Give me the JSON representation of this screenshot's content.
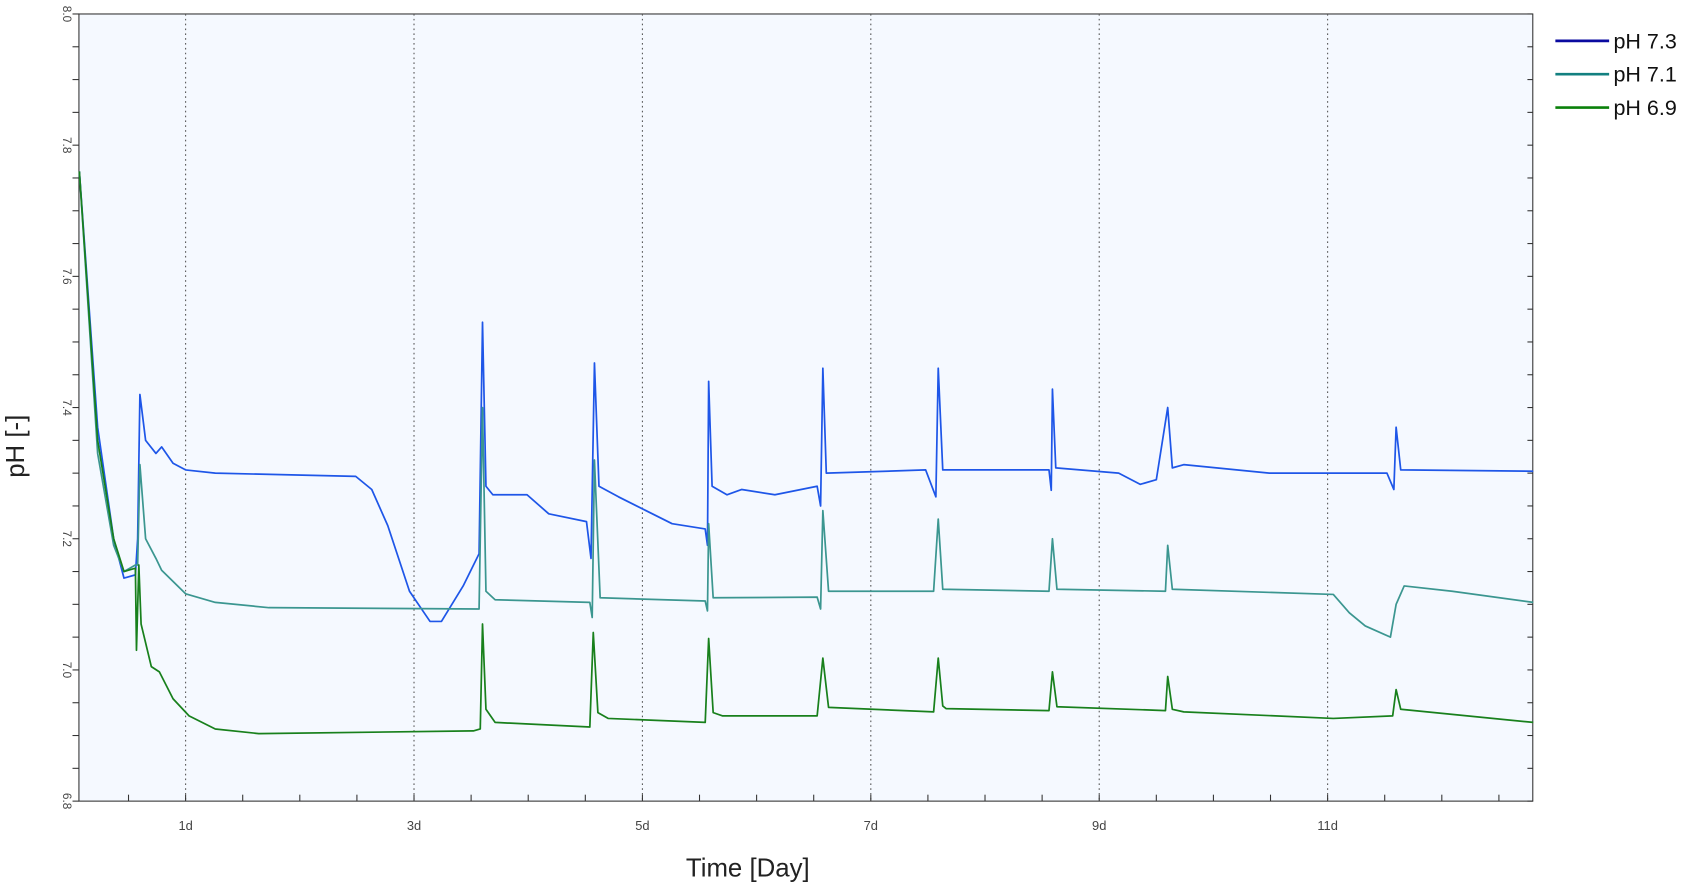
{
  "chart_data": {
    "type": "line",
    "title": "",
    "xlabel": "Time [Day]",
    "ylabel": "pH [-]",
    "xlim": [
      0.07,
      12.8
    ],
    "ylim": [
      6.8,
      8.0
    ],
    "x_ticks": [
      1,
      3,
      5,
      7,
      9,
      11
    ],
    "x_tick_labels": [
      "1d",
      "3d",
      "5d",
      "7d",
      "9d",
      "11d"
    ],
    "y_ticks": [
      6.8,
      7.0,
      7.2,
      7.4,
      7.6,
      7.8,
      8.0
    ],
    "y_tick_labels": [
      "6.8",
      "7.0",
      "7.2",
      "7.4",
      "7.6",
      "7.8",
      "8.0"
    ],
    "grid": "vertical dotted at labelled days",
    "legend_position": "top-right outside",
    "background": "#f5f9ff",
    "series": [
      {
        "name": "pH 7.3",
        "color": "#1e56e8",
        "legend_color": "#0a0aa0",
        "x": [
          0.07,
          0.23,
          0.37,
          0.46,
          0.56,
          0.58,
          0.6,
          0.65,
          0.74,
          0.79,
          0.89,
          1.0,
          1.26,
          2.49,
          2.63,
          2.77,
          2.96,
          3.14,
          3.24,
          3.43,
          3.57,
          3.6,
          3.63,
          3.69,
          3.99,
          4.18,
          4.51,
          4.55,
          4.58,
          4.62,
          4.79,
          5.03,
          5.26,
          5.55,
          5.57,
          5.58,
          5.61,
          5.74,
          5.87,
          6.16,
          6.53,
          6.56,
          6.58,
          6.61,
          7.48,
          7.57,
          7.59,
          7.63,
          8.56,
          8.58,
          8.59,
          8.62,
          9.17,
          9.36,
          9.5,
          9.6,
          9.64,
          9.74,
          10.49,
          11.52,
          11.58,
          11.6,
          11.64,
          12.8
        ],
        "y": [
          7.76,
          7.37,
          7.2,
          7.14,
          7.145,
          7.2,
          7.42,
          7.35,
          7.33,
          7.34,
          7.315,
          7.305,
          7.3,
          7.295,
          7.275,
          7.22,
          7.12,
          7.074,
          7.074,
          7.128,
          7.177,
          7.53,
          7.28,
          7.267,
          7.267,
          7.238,
          7.226,
          7.17,
          7.468,
          7.28,
          7.264,
          7.243,
          7.223,
          7.215,
          7.19,
          7.44,
          7.28,
          7.267,
          7.275,
          7.267,
          7.28,
          7.25,
          7.46,
          7.3,
          7.305,
          7.264,
          7.46,
          7.305,
          7.305,
          7.274,
          7.428,
          7.308,
          7.3,
          7.283,
          7.29,
          7.4,
          7.308,
          7.313,
          7.3,
          7.3,
          7.275,
          7.37,
          7.305,
          7.303
        ]
      },
      {
        "name": "pH 7.1",
        "color": "#3b9690",
        "legend_color": "#138080",
        "x": [
          0.07,
          0.23,
          0.37,
          0.46,
          0.56,
          0.58,
          0.6,
          0.65,
          0.74,
          0.79,
          1.0,
          1.26,
          1.73,
          3.57,
          3.6,
          3.63,
          3.71,
          4.54,
          4.56,
          4.58,
          4.63,
          5.55,
          5.57,
          5.58,
          5.62,
          6.53,
          6.56,
          6.58,
          6.63,
          7.55,
          7.59,
          7.63,
          8.56,
          8.59,
          8.63,
          9.58,
          9.6,
          9.64,
          11.05,
          11.19,
          11.33,
          11.55,
          11.6,
          11.67,
          12.09,
          12.8
        ],
        "y": [
          7.76,
          7.33,
          7.19,
          7.15,
          7.16,
          7.16,
          7.313,
          7.2,
          7.17,
          7.152,
          7.116,
          7.103,
          7.095,
          7.093,
          7.4,
          7.12,
          7.107,
          7.103,
          7.08,
          7.32,
          7.11,
          7.105,
          7.09,
          7.223,
          7.11,
          7.111,
          7.093,
          7.243,
          7.12,
          7.12,
          7.23,
          7.123,
          7.12,
          7.2,
          7.123,
          7.12,
          7.19,
          7.123,
          7.115,
          7.087,
          7.067,
          7.05,
          7.1,
          7.128,
          7.12,
          7.103
        ]
      },
      {
        "name": "pH 6.9",
        "color": "#18801c",
        "legend_color": "#0a800a",
        "x": [
          0.07,
          0.23,
          0.37,
          0.46,
          0.56,
          0.57,
          0.59,
          0.61,
          0.7,
          0.77,
          0.89,
          1.03,
          1.26,
          1.64,
          3.52,
          3.58,
          3.6,
          3.63,
          3.71,
          4.54,
          4.57,
          4.61,
          4.7,
          5.55,
          5.58,
          5.62,
          5.7,
          6.53,
          6.58,
          6.63,
          7.55,
          7.59,
          7.63,
          7.66,
          8.56,
          8.59,
          8.63,
          9.58,
          9.6,
          9.64,
          9.74,
          11.05,
          11.57,
          11.6,
          11.64,
          12.8
        ],
        "y": [
          7.76,
          7.35,
          7.2,
          7.15,
          7.155,
          7.03,
          7.16,
          7.07,
          7.005,
          6.997,
          6.956,
          6.93,
          6.91,
          6.903,
          6.907,
          6.91,
          7.07,
          6.94,
          6.92,
          6.913,
          7.057,
          6.935,
          6.926,
          6.92,
          7.048,
          6.935,
          6.93,
          6.93,
          7.018,
          6.943,
          6.936,
          7.018,
          6.945,
          6.941,
          6.938,
          6.997,
          6.944,
          6.938,
          6.99,
          6.94,
          6.936,
          6.926,
          6.93,
          6.97,
          6.94,
          6.92
        ]
      }
    ]
  }
}
